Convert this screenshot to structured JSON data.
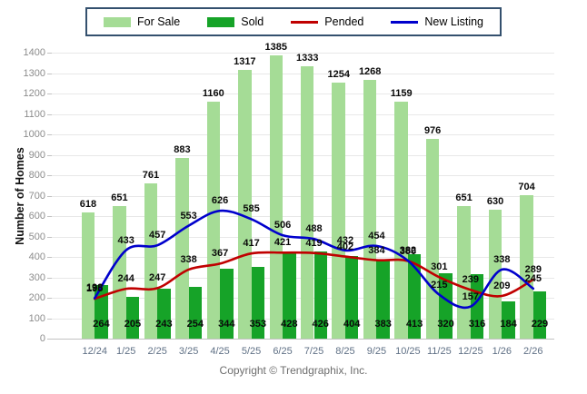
{
  "legend": {
    "items": [
      {
        "label": "For Sale",
        "type": "bar",
        "color": "#a5dc96"
      },
      {
        "label": "Sold",
        "type": "bar",
        "color": "#16a328"
      },
      {
        "label": "Pended",
        "type": "line",
        "color": "#c00000"
      },
      {
        "label": "New Listing",
        "type": "line",
        "color": "#0000cc"
      }
    ]
  },
  "chart_data": {
    "type": "bar",
    "title": "",
    "xlabel": "",
    "ylabel": "Number of Homes",
    "ylim": [
      0,
      1400
    ],
    "ytick_step": 100,
    "grid": "horizontal",
    "legend_position": "top-center",
    "categories": [
      "12/24",
      "1/25",
      "2/25",
      "3/25",
      "4/25",
      "5/25",
      "6/25",
      "7/25",
      "8/25",
      "9/25",
      "10/25",
      "11/25",
      "12/25",
      "1/26",
      "2/26"
    ],
    "series": [
      {
        "name": "For Sale",
        "type": "bar",
        "color": "#a5dc96",
        "values": [
          618,
          651,
          761,
          883,
          1160,
          1317,
          1385,
          1333,
          1254,
          1268,
          1159,
          976,
          651,
          630,
          704
        ]
      },
      {
        "name": "Sold",
        "type": "bar",
        "color": "#16a328",
        "values": [
          264,
          205,
          243,
          254,
          344,
          353,
          428,
          426,
          404,
          383,
          413,
          320,
          316,
          184,
          229
        ]
      },
      {
        "name": "Pended",
        "type": "line",
        "color": "#c00000",
        "values": [
          195,
          244,
          247,
          338,
          367,
          417,
          421,
          419,
          402,
          384,
          380,
          301,
          239,
          209,
          289
        ]
      },
      {
        "name": "New Listing",
        "type": "line",
        "color": "#0000cc",
        "values": [
          198,
          433,
          457,
          553,
          626,
          585,
          506,
          488,
          432,
          454,
          382,
          215,
          157,
          338,
          245
        ]
      }
    ],
    "value_label_colors": "#0a0a0a"
  },
  "footer": {
    "copyright": "Copyright © Trendgraphix, Inc."
  }
}
